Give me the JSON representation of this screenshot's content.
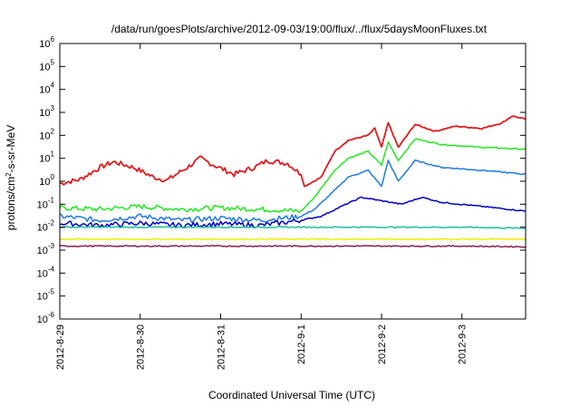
{
  "chart_data": {
    "type": "line",
    "title": "/data/run/goesPlots/archive/2012-09-03/19:00/flux/../flux/5daysMoonFluxes.txt",
    "xlabel": "Coordinated Universal Time (UTC)",
    "ylabel_parts": {
      "pre": "protons/cm",
      "sup": "2",
      "post": "-s-sr-MeV"
    },
    "y_scale": "log",
    "ylim": [
      1e-06,
      1000000.0
    ],
    "xlim": [
      "2012-08-29 00:00",
      "2012-09-03 19:00"
    ],
    "x_ticks": [
      "2012-8-29",
      "2012-8-30",
      "2012-8-31",
      "2012-9-1",
      "2012-9-2",
      "2012-9-3"
    ],
    "y_tick_exponents": [
      "-6",
      "-5",
      "-4",
      "-3",
      "-2",
      "-1",
      "0",
      "1",
      "2",
      "3",
      "4",
      "5",
      "6"
    ],
    "y_tick_base": "10",
    "grid": false,
    "legend": "none",
    "series": [
      {
        "color": "#e31a1c",
        "points": [
          [
            "2012-08-29 00:00",
            0.8
          ],
          [
            "2012-08-29 06:00",
            1.2
          ],
          [
            "2012-08-29 12:00",
            4
          ],
          [
            "2012-08-29 16:00",
            7
          ],
          [
            "2012-08-29 22:00",
            4
          ],
          [
            "2012-08-30 04:00",
            1.5
          ],
          [
            "2012-08-30 08:00",
            1.1
          ],
          [
            "2012-08-30 14:00",
            4
          ],
          [
            "2012-08-30 18:00",
            10
          ],
          [
            "2012-08-30 22:00",
            5
          ],
          [
            "2012-08-31 04:00",
            2
          ],
          [
            "2012-08-31 10:00",
            4
          ],
          [
            "2012-08-31 14:00",
            8
          ],
          [
            "2012-08-31 20:00",
            6
          ],
          [
            "2012-09-01 00:00",
            2
          ],
          [
            "2012-09-01 01:00",
            0.6
          ],
          [
            "2012-09-01 06:00",
            1.5
          ],
          [
            "2012-09-01 10:00",
            20
          ],
          [
            "2012-09-01 14:00",
            60
          ],
          [
            "2012-09-01 20:00",
            100
          ],
          [
            "2012-09-01 22:00",
            200
          ],
          [
            "2012-09-02 00:00",
            30
          ],
          [
            "2012-09-02 02:00",
            350
          ],
          [
            "2012-09-02 05:00",
            30
          ],
          [
            "2012-09-02 10:00",
            300
          ],
          [
            "2012-09-02 16:00",
            150
          ],
          [
            "2012-09-02 22:00",
            250
          ],
          [
            "2012-09-03 06:00",
            200
          ],
          [
            "2012-09-03 12:00",
            350
          ],
          [
            "2012-09-03 15:00",
            700
          ],
          [
            "2012-09-03 19:00",
            500
          ]
        ]
      },
      {
        "color": "#22e822",
        "points": [
          [
            "2012-08-29 00:00",
            0.07
          ],
          [
            "2012-08-29 12:00",
            0.06
          ],
          [
            "2012-08-30 00:00",
            0.08
          ],
          [
            "2012-08-30 12:00",
            0.06
          ],
          [
            "2012-08-31 00:00",
            0.07
          ],
          [
            "2012-08-31 12:00",
            0.06
          ],
          [
            "2012-09-01 00:00",
            0.05
          ],
          [
            "2012-09-01 04:00",
            0.2
          ],
          [
            "2012-09-01 10:00",
            3
          ],
          [
            "2012-09-01 14:00",
            10
          ],
          [
            "2012-09-01 20:00",
            20
          ],
          [
            "2012-09-02 00:00",
            5
          ],
          [
            "2012-09-02 02:00",
            50
          ],
          [
            "2012-09-02 05:00",
            8
          ],
          [
            "2012-09-02 10:00",
            70
          ],
          [
            "2012-09-02 18:00",
            40
          ],
          [
            "2012-09-03 06:00",
            30
          ],
          [
            "2012-09-03 19:00",
            25
          ]
        ]
      },
      {
        "color": "#1f78e4",
        "points": [
          [
            "2012-08-29 00:00",
            0.03
          ],
          [
            "2012-08-29 12:00",
            0.02
          ],
          [
            "2012-08-30 00:00",
            0.03
          ],
          [
            "2012-08-30 12:00",
            0.02
          ],
          [
            "2012-08-31 00:00",
            0.025
          ],
          [
            "2012-08-31 12:00",
            0.02
          ],
          [
            "2012-09-01 00:00",
            0.03
          ],
          [
            "2012-09-01 04:00",
            0.06
          ],
          [
            "2012-09-01 10:00",
            0.4
          ],
          [
            "2012-09-01 14:00",
            1.5
          ],
          [
            "2012-09-01 20:00",
            3
          ],
          [
            "2012-09-02 00:00",
            0.6
          ],
          [
            "2012-09-02 02:00",
            8
          ],
          [
            "2012-09-02 05:00",
            1
          ],
          [
            "2012-09-02 10:00",
            8
          ],
          [
            "2012-09-02 18:00",
            4
          ],
          [
            "2012-09-03 06:00",
            3
          ],
          [
            "2012-09-03 19:00",
            2
          ]
        ]
      },
      {
        "color": "#0000c8",
        "points": [
          [
            "2012-08-29 00:00",
            0.015
          ],
          [
            "2012-08-29 12:00",
            0.012
          ],
          [
            "2012-08-30 00:00",
            0.015
          ],
          [
            "2012-08-30 12:00",
            0.012
          ],
          [
            "2012-08-31 00:00",
            0.014
          ],
          [
            "2012-08-31 12:00",
            0.012
          ],
          [
            "2012-09-01 00:00",
            0.02
          ],
          [
            "2012-09-01 06:00",
            0.03
          ],
          [
            "2012-09-01 12:00",
            0.08
          ],
          [
            "2012-09-01 18:00",
            0.2
          ],
          [
            "2012-09-02 06:00",
            0.1
          ],
          [
            "2012-09-02 12:00",
            0.2
          ],
          [
            "2012-09-02 18:00",
            0.12
          ],
          [
            "2012-09-03 06:00",
            0.08
          ],
          [
            "2012-09-03 19:00",
            0.05
          ]
        ]
      },
      {
        "color": "#1fbfa0",
        "points": [
          [
            "2012-08-29 00:00",
            0.01
          ],
          [
            "2012-08-30 00:00",
            0.01
          ],
          [
            "2012-08-31 00:00",
            0.01
          ],
          [
            "2012-09-01 00:00",
            0.01
          ],
          [
            "2012-09-02 00:00",
            0.01
          ],
          [
            "2012-09-03 00:00",
            0.01
          ],
          [
            "2012-09-03 19:00",
            0.009
          ]
        ]
      },
      {
        "color": "#f0f000",
        "points": [
          [
            "2012-08-29 00:00",
            0.003
          ],
          [
            "2012-08-30 00:00",
            0.003
          ],
          [
            "2012-08-31 00:00",
            0.003
          ],
          [
            "2012-09-01 00:00",
            0.003
          ],
          [
            "2012-09-02 00:00",
            0.003
          ],
          [
            "2012-09-03 00:00",
            0.003
          ],
          [
            "2012-09-03 19:00",
            0.003
          ]
        ]
      },
      {
        "color": "#8b1a4f",
        "points": [
          [
            "2012-08-29 00:00",
            0.0015
          ],
          [
            "2012-08-30 00:00",
            0.0015
          ],
          [
            "2012-08-31 00:00",
            0.0015
          ],
          [
            "2012-09-01 00:00",
            0.0015
          ],
          [
            "2012-09-02 00:00",
            0.0015
          ],
          [
            "2012-09-03 00:00",
            0.0015
          ],
          [
            "2012-09-03 19:00",
            0.0014
          ]
        ]
      }
    ]
  }
}
